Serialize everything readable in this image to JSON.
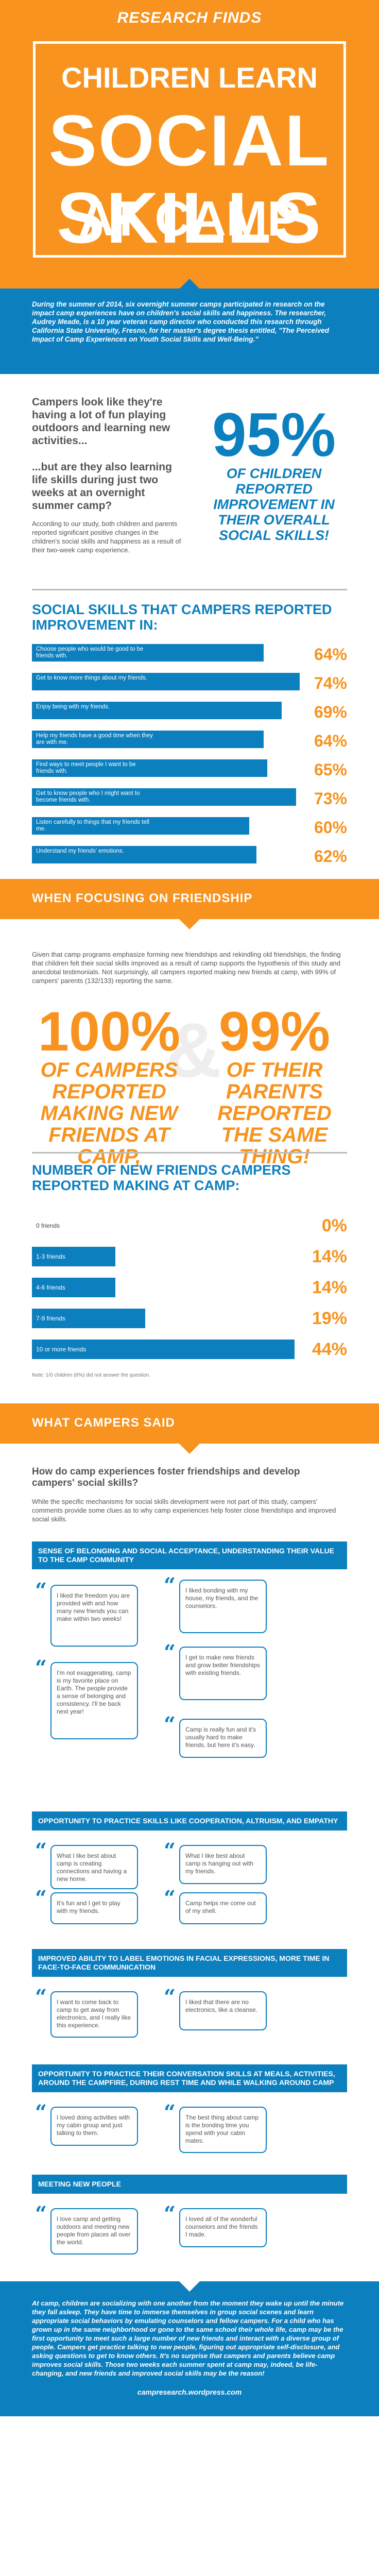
{
  "header": {
    "kicker": "RESEARCH FINDS",
    "line1": "CHILDREN LEARN",
    "line2": "SOCIAL SKILLS",
    "line3": "AT CAMP"
  },
  "intro": "During the summer of 2014, six overnight summer camps participated in research on the impact camp experiences have on children's social skills and happiness. The researcher, Audrey Meade, is a 10 year veteran camp director who conducted this research through California State University, Fresno, for her master's degree thesis entitled, \"The Perceived Impact of Camp Experiences on Youth Social Skills and Well-Being.\"",
  "look": {
    "q1": "Campers look like they're having a lot of fun playing outdoors and learning new activities...",
    "q2": "...but are they also learning life skills during just two weeks at an overnight summer camp?",
    "para": "According to our study, both children and parents reported significant positive changes in the children's social skills and happiness as a result of their two-week camp experience.",
    "stat": "95%",
    "stat_caption": "OF CHILDREN REPORTED IMPROVEMENT IN THEIR OVERALL SOCIAL SKILLS!"
  },
  "skills": {
    "title": "SOCIAL SKILLS THAT CAMPERS REPORTED IMPROVEMENT IN:",
    "items": [
      {
        "label": "Choose people who would be good to be friends with.",
        "value": "64%",
        "pct": 64
      },
      {
        "label": "Get to know more things about my friends.",
        "value": "74%",
        "pct": 74
      },
      {
        "label": "Enjoy being with my friends.",
        "value": "69%",
        "pct": 69
      },
      {
        "label": "Help my friends have a good time when they are with me.",
        "value": "64%",
        "pct": 64
      },
      {
        "label": "Find ways to meet people I want to be friends with.",
        "value": "65%",
        "pct": 65
      },
      {
        "label": "Get to know people who I might want to become friends with.",
        "value": "73%",
        "pct": 73
      },
      {
        "label": "Listen carefully to things that my friends tell me.",
        "value": "60%",
        "pct": 60
      },
      {
        "label": "Understand my friends' emotions.",
        "value": "62%",
        "pct": 62
      }
    ]
  },
  "friendship": {
    "banner": "WHEN FOCUSING ON FRIENDSHIP",
    "para": "Given that camp programs emphasize forming new friendships and rekindling old friendships, the finding that children felt their social skills improved as a result of camp supports the hypothesis of this study and anecdotal testimonials. Not surprisingly, all campers reported making new friends at camp, with 99% of campers' parents (132/133) reporting the same.",
    "left_stat": "100%",
    "left_cap": "OF CAMPERS REPORTED MAKING NEW FRIENDS AT CAMP,",
    "amp": "&",
    "right_stat": "99%",
    "right_cap": "OF THEIR PARENTS REPORTED THE SAME THING!",
    "chart_title": "NUMBER OF NEW FRIENDS CAMPERS REPORTED MAKING AT CAMP:",
    "note": "Note: 1/0 children (6%) did not answer the question."
  },
  "chart_data": {
    "type": "bar",
    "title": "NUMBER OF NEW FRIENDS CAMPERS REPORTED MAKING AT CAMP:",
    "categories": [
      "0 friends",
      "1-3 friends",
      "4-6 friends",
      "7-9 friends",
      "10 or more friends"
    ],
    "values": [
      0,
      14,
      14,
      19,
      44
    ],
    "value_labels": [
      "0%",
      "14%",
      "14%",
      "19%",
      "44%"
    ],
    "ylim": [
      0,
      100
    ]
  },
  "said": {
    "banner": "WHAT CAMPERS SAID",
    "question": "How do camp experiences foster friendships and develop campers' social skills?",
    "para": "While the specific mechanisms for social skills development were not part of this study, campers' comments provide some clues as to why camp experiences help foster close friendships and improved social skills."
  },
  "sections": [
    {
      "title": "SENSE OF BELONGING AND SOCIAL ACCEPTANCE, UNDERSTANDING THEIR VALUE TO THE CAMP COMMUNITY",
      "quotes": [
        "I liked the freedom you are provided with and how many new friends you can make within two weeks!",
        "I liked bonding with my house, my friends, and the counselors.",
        "I'm not exaggerating, camp is my favorite place on Earth. The people provide a sense of belonging and consistency. I'll be back next year!",
        "I get to make new friends and grow better friendships with existing friends.",
        "Camp is really fun and it's usually hard to make friends, but here it's easy."
      ]
    },
    {
      "title": "OPPORTUNITY TO PRACTICE SKILLS LIKE COOPERATION, ALTRUISM, AND EMPATHY",
      "quotes": [
        "What I like best about camp is creating connections and having a new home.",
        "What I like best about camp is hanging out with my friends.",
        "It's fun and I get to play with my friends.",
        "Camp helps me come out of my shell."
      ]
    },
    {
      "title": "IMPROVED ABILITY TO LABEL EMOTIONS IN FACIAL EXPRESSIONS, MORE TIME IN FACE-TO-FACE COMMUNICATION",
      "quotes": [
        "I want to come back to camp to get away from electronics, and I really like this experience.",
        "I liked that there are no electronics, like a cleanse."
      ]
    },
    {
      "title": "OPPORTUNITY TO PRACTICE THEIR CONVERSATION SKILLS AT MEALS, ACTIVITIES, AROUND THE CAMPFIRE, DURING REST TIME AND WHILE WALKING AROUND CAMP",
      "quotes": [
        "I loved doing activities with my cabin group and just talking to them.",
        "The best thing about camp is the bonding time you spend with your cabin mates."
      ]
    },
    {
      "title": "MEETING NEW PEOPLE",
      "quotes": [
        "I love camp and getting outdoors and meeting new people from places all over the world.",
        "I loved all of the wonderful counselors and the friends I made."
      ]
    }
  ],
  "footer": {
    "text": "At camp, children are socializing with one another from the moment they wake up until the minute they fall asleep. They have time to immerse themselves in group social scenes and learn appropriate social behaviors by emulating counselors and fellow campers. For a child who has grown up in the same neighborhood or gone to the same school their whole life, camp may be the first opportunity to meet such a large number of new friends and interact with a diverse group of people. Campers get practice talking to new people, figuring out appropriate self-disclosure, and asking questions to get to know others. It's no surprise that campers and parents believe camp improves social skills. Those two weeks each summer spent at camp may, indeed, be life-changing, and new friends and improved social skills may be the reason!",
    "url": "campresearch.wordpress.com"
  }
}
